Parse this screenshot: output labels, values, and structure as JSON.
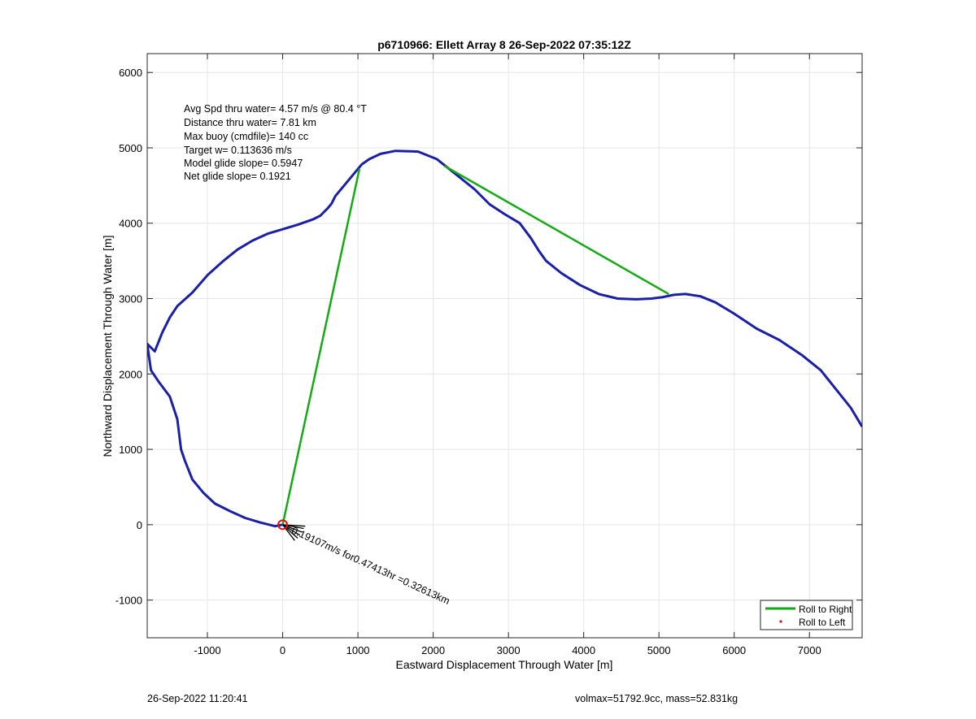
{
  "chart_data": {
    "type": "line",
    "title": "p6710966: Ellett Array 8 26-Sep-2022 07:35:12Z",
    "xlabel": "Eastward Displacement Through Water [m]",
    "ylabel": "Northward Displacement Through Water [m]",
    "xlim": [
      -1800,
      7700
    ],
    "ylim": [
      -1500,
      6250
    ],
    "xticks": [
      -1000,
      0,
      1000,
      2000,
      3000,
      4000,
      5000,
      6000,
      7000
    ],
    "yticks": [
      -1000,
      0,
      1000,
      2000,
      3000,
      4000,
      5000,
      6000
    ],
    "xtick_labels": [
      "-1000",
      "0",
      "1000",
      "2000",
      "3000",
      "4000",
      "5000",
      "6000",
      "7000"
    ],
    "ytick_labels": [
      "-1000",
      "0",
      "1000",
      "2000",
      "3000",
      "4000",
      "5000",
      "6000"
    ],
    "grid": true,
    "colors": {
      "track": "#1a1fa8",
      "roll_right": "#14aa14",
      "roll_left": "#e01010",
      "current_vectors": "#000000",
      "grid": "#e6e6e6"
    },
    "track": {
      "x": [
        7700,
        7550,
        7350,
        7150,
        6900,
        6600,
        6300,
        6000,
        5750,
        5550,
        5350,
        5200,
        5050,
        4900,
        4700,
        4450,
        4200,
        3950,
        3700,
        3500,
        3400,
        3300,
        3150,
        2950,
        2750,
        2550,
        2300,
        2050,
        1800,
        1500,
        1300,
        1150,
        1050,
        1000,
        900,
        800,
        700,
        650,
        600,
        500,
        400,
        200,
        0,
        -200,
        -400,
        -600,
        -800,
        -1000,
        -1200,
        -1400,
        -1500,
        -1600,
        -1700,
        -1800,
        -1750,
        -1650,
        -1500,
        -1400,
        -1350,
        -1300,
        -1200,
        -1050,
        -900,
        -700,
        -500,
        -300,
        -100,
        0
      ],
      "y": [
        1300,
        1550,
        1800,
        2050,
        2250,
        2450,
        2600,
        2800,
        2950,
        3030,
        3060,
        3050,
        3020,
        3000,
        2990,
        3000,
        3060,
        3180,
        3340,
        3500,
        3640,
        3800,
        4000,
        4120,
        4250,
        4450,
        4650,
        4850,
        4950,
        4960,
        4920,
        4850,
        4780,
        4720,
        4600,
        4480,
        4360,
        4260,
        4200,
        4100,
        4050,
        3980,
        3920,
        3860,
        3770,
        3650,
        3490,
        3310,
        3080,
        2900,
        2750,
        2550,
        2300,
        2400,
        2050,
        1900,
        1700,
        1400,
        1000,
        850,
        600,
        420,
        280,
        180,
        90,
        30,
        -20,
        0
      ]
    },
    "roll_to_right_segments": [
      {
        "x": [
          0,
          1020
        ],
        "y": [
          0,
          4720
        ]
      },
      {
        "x": [
          2150,
          5130
        ],
        "y": [
          4760,
          3060
        ]
      }
    ],
    "roll_to_left_points": [],
    "start_marker": {
      "x": 0,
      "y": 0
    },
    "current_vectors": [
      {
        "dx": 280,
        "dy": -50
      },
      {
        "dx": 260,
        "dy": -100
      },
      {
        "dx": 230,
        "dy": -140
      },
      {
        "dx": 200,
        "dy": -180
      },
      {
        "dx": 160,
        "dy": -210
      },
      {
        "dx": 300,
        "dy": -20
      }
    ],
    "current_label": "0.19107m/s for0.47413hr =0.32613km",
    "annotations": [
      "Avg Spd thru water=  4.57 m/s @  80.4 °T",
      "Distance thru water=  7.81 km",
      "Max buoy (cmdfile)= 140 cc",
      "Target w= 0.113636 m/s",
      "Model glide slope= 0.5947",
      "Net glide slope= 0.1921"
    ],
    "legend": {
      "placement": "bottom-right",
      "entries": [
        {
          "name": "Roll to Right",
          "style": "line",
          "color": "#14aa14"
        },
        {
          "name": "Roll to Left",
          "style": "dot",
          "color": "#e01010"
        }
      ]
    }
  },
  "footer": {
    "left": "26-Sep-2022 11:20:41",
    "right": "volmax=51792.9cc, mass=52.831kg"
  }
}
